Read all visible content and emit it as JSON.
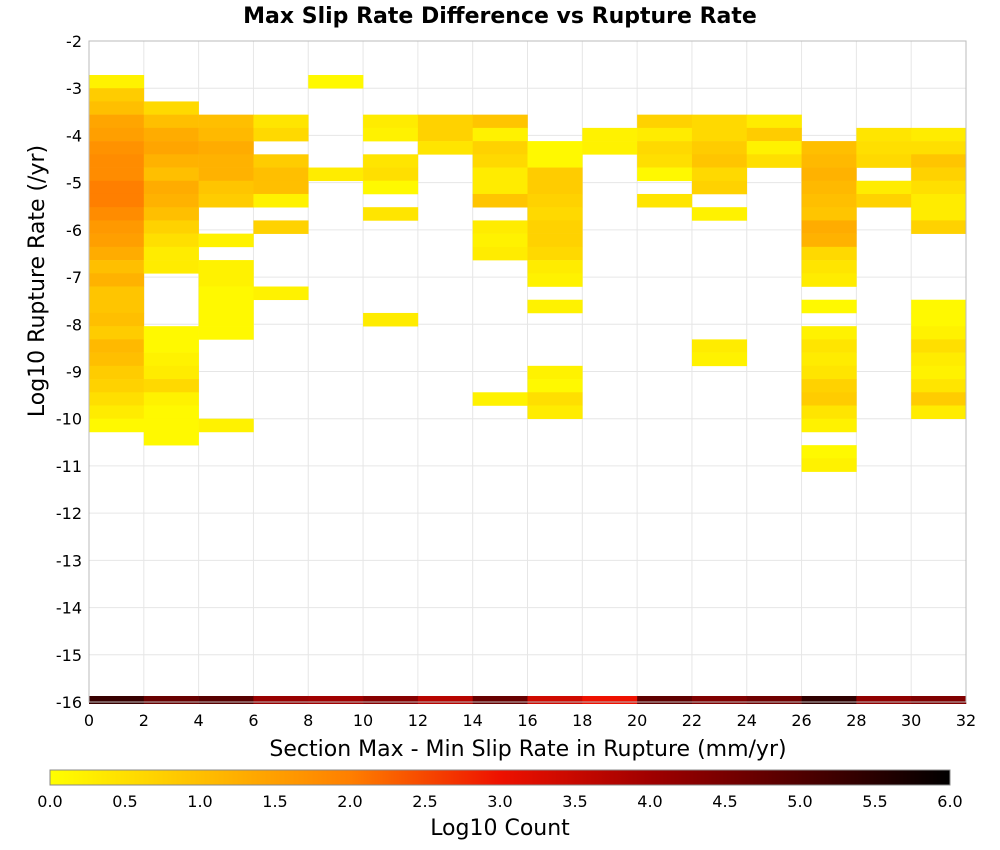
{
  "chart_data": {
    "type": "heatmap",
    "title": "Max Slip Rate Difference vs Rupture Rate",
    "xlabel": "Section Max - Min Slip Rate in Rupture (mm/yr)",
    "ylabel": "Log10 Rupture Rate (/yr)",
    "xlim": [
      0,
      32
    ],
    "ylim": [
      -16,
      -2
    ],
    "x_ticks": [
      "0",
      "2",
      "4",
      "6",
      "8",
      "10",
      "12",
      "14",
      "16",
      "18",
      "20",
      "22",
      "24",
      "26",
      "28",
      "30",
      "32"
    ],
    "y_ticks": [
      "-2",
      "-3",
      "-4",
      "-5",
      "-6",
      "-7",
      "-8",
      "-9",
      "-10",
      "-11",
      "-12",
      "-13",
      "-14",
      "-15",
      "-16"
    ],
    "grid": true,
    "x_bin_width": 2,
    "y_bin_height": 0.28,
    "colorbar": {
      "label": "Log10 Count",
      "range": [
        0.0,
        6.0
      ],
      "ticks": [
        "0.0",
        "0.5",
        "1.0",
        "1.5",
        "2.0",
        "2.5",
        "3.0",
        "3.5",
        "4.0",
        "4.5",
        "5.0",
        "5.5",
        "6.0"
      ],
      "stops": [
        {
          "v": 0.0,
          "color": "#ffff00"
        },
        {
          "v": 1.0,
          "color": "#ffbf00"
        },
        {
          "v": 2.0,
          "color": "#ff7f00"
        },
        {
          "v": 3.0,
          "color": "#ee1100"
        },
        {
          "v": 4.0,
          "color": "#a00000"
        },
        {
          "v": 5.0,
          "color": "#500000"
        },
        {
          "v": 6.0,
          "color": "#000000"
        }
      ]
    },
    "columns": [
      {
        "x": 0,
        "ymax": -2.72,
        "counts": [
          0.2,
          0.8,
          1.0,
          1.4,
          1.5,
          1.7,
          1.8,
          1.8,
          2.0,
          2.0,
          1.8,
          1.6,
          1.5,
          1.3,
          1.0,
          1.2,
          0.9,
          0.9,
          1.0,
          0.8,
          1.1,
          1.0,
          0.8,
          0.7,
          0.5,
          0.3,
          0.1
        ]
      },
      {
        "x": 2,
        "ymax": -3.28,
        "counts": [
          0.6,
          1.0,
          1.3,
          1.4,
          1.2,
          1.0,
          1.3,
          1.2,
          1.0,
          0.7,
          0.5,
          0.3,
          0.3,
          null,
          null,
          null,
          null,
          0.1,
          0.1,
          0.2,
          0.3,
          0.6,
          0.2,
          0.1,
          0.1,
          0.1
        ]
      },
      {
        "x": 4,
        "ymax": -3.56,
        "counts": [
          1.0,
          1.1,
          1.3,
          1.2,
          1.2,
          0.9,
          0.8,
          null,
          null,
          0.2,
          null,
          0.2,
          0.2,
          0.1,
          0.1,
          0.1,
          0.1,
          null,
          null,
          null,
          null,
          null,
          null,
          0.2
        ]
      },
      {
        "x": 6,
        "ymax": -3.56,
        "counts": [
          0.4,
          0.6,
          null,
          0.8,
          1.0,
          1.0,
          0.2,
          null,
          0.7,
          null,
          null,
          null,
          null,
          0.2
        ]
      },
      {
        "x": 8,
        "ymax": -2.72,
        "counts": [
          0.1,
          null,
          null,
          null,
          null,
          null,
          null,
          0.3
        ]
      },
      {
        "x": 10,
        "ymax": -3.56,
        "counts": [
          0.3,
          0.2,
          null,
          0.4,
          0.5,
          0.1,
          null,
          0.4,
          null,
          null,
          null,
          null,
          null,
          null,
          null,
          0.3
        ]
      },
      {
        "x": 12,
        "ymax": -3.56,
        "counts": [
          0.7,
          0.7,
          0.4
        ]
      },
      {
        "x": 14,
        "ymax": -3.56,
        "counts": [
          0.9,
          0.2,
          0.7,
          0.6,
          0.3,
          0.3,
          0.9,
          null,
          0.3,
          0.2,
          0.3,
          null,
          null,
          null,
          null,
          null,
          null,
          null,
          null,
          null,
          null,
          0.2
        ]
      },
      {
        "x": 16,
        "ymax": -4.12,
        "counts": [
          0.1,
          0.1,
          0.8,
          0.8,
          0.7,
          0.6,
          0.7,
          0.7,
          0.6,
          0.3,
          0.2,
          null,
          0.2,
          null,
          null,
          null,
          null,
          0.2,
          0.1,
          0.5,
          0.3
        ]
      },
      {
        "x": 18,
        "ymax": -3.84,
        "counts": [
          0.2,
          0.2
        ]
      },
      {
        "x": 20,
        "ymax": -3.56,
        "counts": [
          0.7,
          0.3,
          0.6,
          0.5,
          0.1,
          null,
          0.4
        ]
      },
      {
        "x": 22,
        "ymax": -3.56,
        "counts": [
          0.6,
          0.6,
          0.8,
          0.9,
          0.6,
          0.7,
          null,
          0.2,
          null,
          null,
          null,
          null,
          null,
          null,
          null,
          null,
          null,
          0.3,
          0.2
        ]
      },
      {
        "x": 24,
        "ymax": -3.56,
        "counts": [
          0.3,
          0.8,
          0.2,
          0.5
        ]
      },
      {
        "x": 26,
        "ymax": -4.12,
        "counts": [
          1.0,
          1.1,
          1.2,
          1.1,
          1.0,
          0.9,
          1.3,
          1.2,
          0.6,
          0.4,
          0.3,
          null,
          0.1,
          null,
          0.2,
          0.4,
          0.3,
          0.4,
          0.7,
          0.8,
          0.4,
          0.2,
          null,
          0.1,
          0.2
        ]
      },
      {
        "x": 28,
        "ymax": -3.84,
        "counts": [
          0.4,
          0.5,
          0.6,
          null,
          0.3,
          0.7
        ]
      },
      {
        "x": 30,
        "ymax": -3.84,
        "counts": [
          0.3,
          0.5,
          0.9,
          0.7,
          0.5,
          0.3,
          0.3,
          0.7,
          null,
          null,
          null,
          null,
          null,
          0.1,
          0.1,
          0.2,
          0.5,
          0.3,
          0.2,
          0.4,
          0.8,
          0.3
        ]
      }
    ],
    "bottom_band": {
      "y": -16,
      "counts": [
        5.3,
        4.7,
        4.9,
        4.1,
        4.0,
        4.3,
        3.7,
        4.7,
        3.4,
        3.0,
        4.8,
        4.4,
        4.6,
        5.4,
        4.2,
        4.4
      ]
    }
  }
}
